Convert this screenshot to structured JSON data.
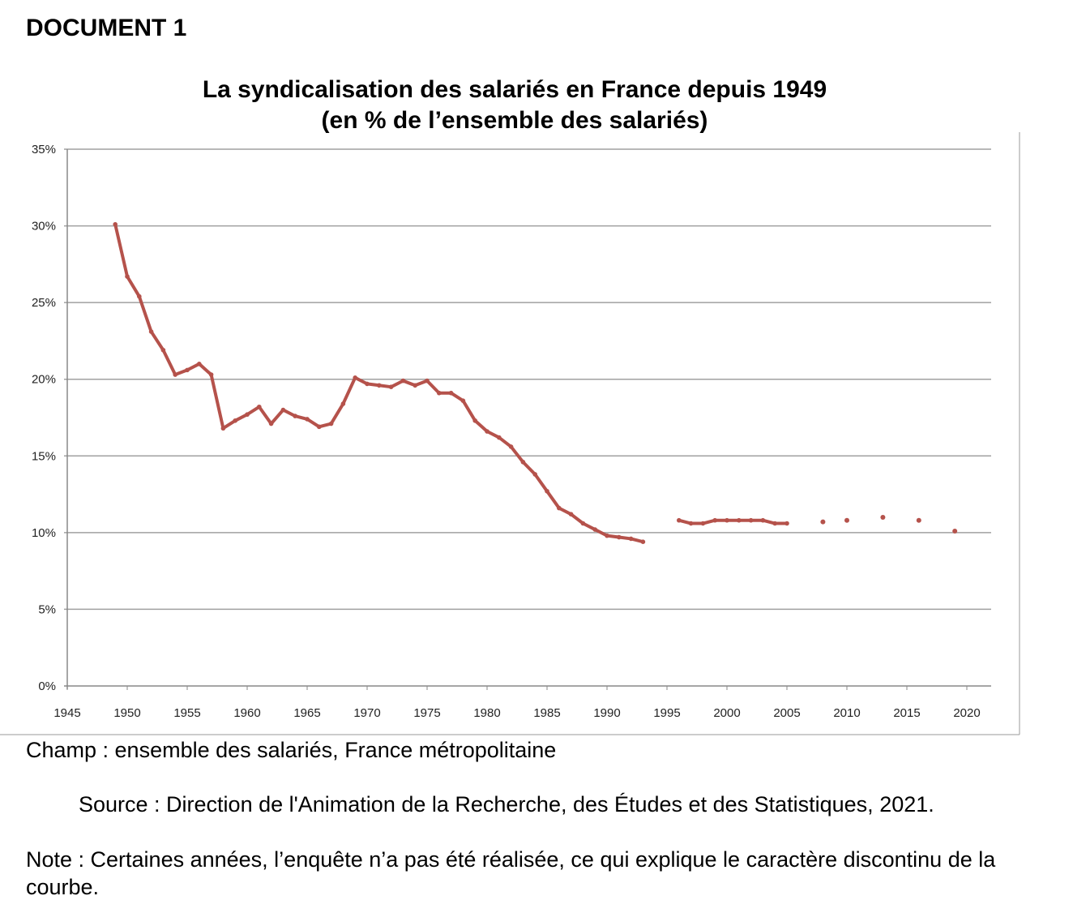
{
  "document_label": "DOCUMENT 1",
  "chart_data": {
    "type": "line",
    "title": "La syndicalisation des salariés en France depuis 1949",
    "subtitle": "(en % de l’ensemble des salariés)",
    "xlabel": "",
    "ylabel": "",
    "xlim": [
      1945,
      2020
    ],
    "ylim": [
      0,
      35
    ],
    "x_ticks": [
      "1945",
      "1950",
      "1955",
      "1960",
      "1965",
      "1970",
      "1975",
      "1980",
      "1985",
      "1990",
      "1995",
      "2000",
      "2005",
      "2010",
      "2015",
      "2020"
    ],
    "y_ticks": [
      "0%",
      "5%",
      "10%",
      "15%",
      "20%",
      "25%",
      "30%",
      "35%"
    ],
    "grid": true,
    "color": "#b5524b",
    "segments": [
      {
        "x": [
          1949,
          1950,
          1951,
          1952,
          1953,
          1954,
          1955,
          1956,
          1957,
          1958,
          1959,
          1960,
          1961,
          1962,
          1963,
          1964,
          1965,
          1966,
          1967,
          1968,
          1969,
          1970,
          1971,
          1972,
          1973,
          1974,
          1975,
          1976,
          1977,
          1978,
          1979,
          1980,
          1981,
          1982,
          1983,
          1984,
          1985,
          1986,
          1987,
          1988,
          1989,
          1990,
          1991,
          1992,
          1993
        ],
        "y": [
          30.1,
          26.7,
          25.4,
          23.1,
          21.9,
          20.3,
          20.6,
          21.0,
          20.3,
          16.8,
          17.3,
          17.7,
          18.2,
          17.1,
          18.0,
          17.6,
          17.4,
          16.9,
          17.1,
          18.4,
          20.1,
          19.7,
          19.6,
          19.5,
          19.9,
          19.6,
          19.9,
          19.1,
          19.1,
          18.6,
          17.3,
          16.6,
          16.2,
          15.6,
          14.6,
          13.8,
          12.7,
          11.6,
          11.2,
          10.6,
          10.2,
          9.8,
          9.7,
          9.6,
          9.4
        ]
      },
      {
        "x": [
          1996,
          1997,
          1998,
          1999,
          2000,
          2001,
          2002,
          2003,
          2004,
          2005
        ],
        "y": [
          10.8,
          10.6,
          10.6,
          10.8,
          10.8,
          10.8,
          10.8,
          10.8,
          10.6,
          10.6
        ]
      }
    ],
    "points": {
      "x": [
        2008,
        2010,
        2013,
        2016,
        2019
      ],
      "y": [
        10.7,
        10.8,
        11.0,
        10.8,
        10.1
      ]
    }
  },
  "champ": "Champ : ensemble des salariés, France métropolitaine",
  "source": "Source : Direction de l'Animation de la Recherche, des Études et des Statistiques, 2021.",
  "note": "Note : Certaines années, l’enquête n’a pas été réalisée, ce qui explique le caractère discontinu de la courbe."
}
